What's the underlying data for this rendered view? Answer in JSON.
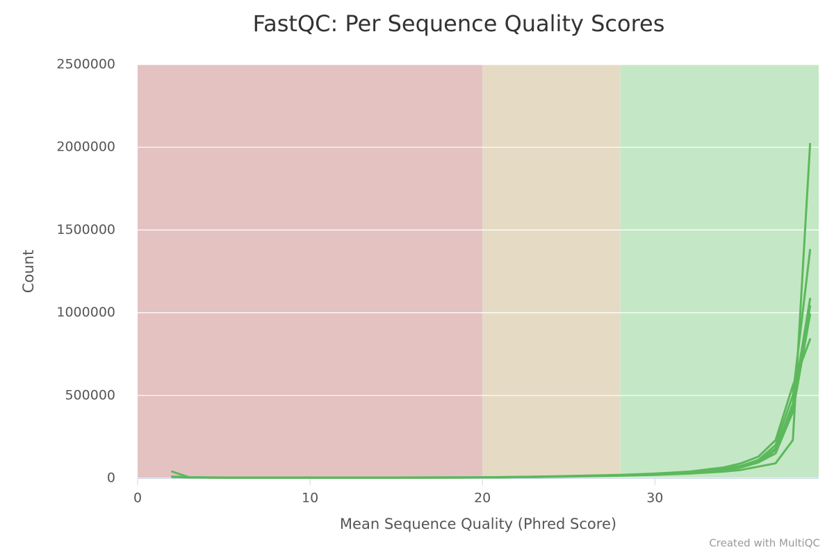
{
  "chart_data": {
    "type": "line",
    "title": "FastQC: Per Sequence Quality Scores",
    "xlabel": "Mean Sequence Quality (Phred Score)",
    "ylabel": "Count",
    "credit": "Created with MultiQC",
    "xlim": [
      0,
      39.5
    ],
    "xticks": [
      0,
      10,
      20,
      30
    ],
    "ylim": [
      0,
      2500000
    ],
    "yticks": [
      0,
      500000,
      1000000,
      1500000,
      2000000,
      2500000
    ],
    "grid": true,
    "bands": [
      {
        "from": 0,
        "to": 20,
        "color": "#e4c2c2"
      },
      {
        "from": 20,
        "to": 28,
        "color": "#e5dbc5"
      },
      {
        "from": 28,
        "to": 39.5,
        "color": "#c4e8c5"
      }
    ],
    "x": [
      2,
      3,
      5,
      10,
      15,
      20,
      24,
      28,
      30,
      32,
      34,
      35,
      36,
      37,
      38,
      39
    ],
    "series": [
      {
        "color": "#5cb85c",
        "values": [
          10000,
          5000,
          3000,
          3000,
          3000,
          4000,
          8000,
          15000,
          20000,
          28000,
          40000,
          50000,
          70000,
          90000,
          230000,
          2020000
        ]
      },
      {
        "color": "#5cb85c",
        "values": [
          40000,
          5000,
          4000,
          4000,
          4000,
          5000,
          10000,
          18000,
          25000,
          35000,
          55000,
          75000,
          110000,
          200000,
          500000,
          1380000
        ]
      },
      {
        "color": "#5cb85c",
        "values": [
          8000,
          5000,
          3000,
          3000,
          3000,
          4000,
          9000,
          16000,
          22000,
          30000,
          45000,
          65000,
          95000,
          170000,
          450000,
          1085000
        ]
      },
      {
        "color": "#5cb85c",
        "values": [
          8000,
          4000,
          3000,
          3000,
          3000,
          4000,
          9000,
          17000,
          24000,
          33000,
          50000,
          70000,
          100000,
          180000,
          420000,
          1040000
        ]
      },
      {
        "color": "#5cb85c",
        "values": [
          8000,
          4000,
          3000,
          3000,
          3000,
          4000,
          9000,
          17000,
          23000,
          32000,
          48000,
          68000,
          95000,
          150000,
          400000,
          990000
        ]
      },
      {
        "color": "#5cb85c",
        "values": [
          8000,
          5000,
          4000,
          4000,
          4000,
          5000,
          11000,
          20000,
          28000,
          40000,
          65000,
          90000,
          130000,
          230000,
          560000,
          840000
        ]
      }
    ]
  }
}
